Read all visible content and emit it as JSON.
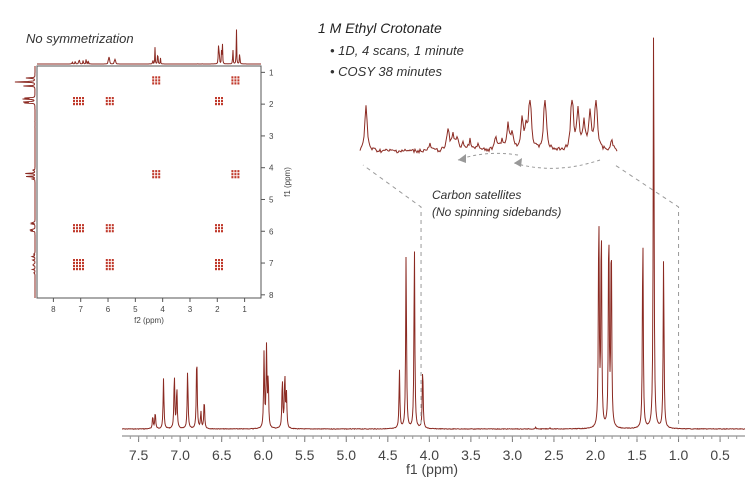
{
  "heading": {
    "title": "1 M Ethyl Crotonate",
    "bullets": [
      "• 1D, 4 scans, 1 minute",
      "• COSY 38 minutes"
    ]
  },
  "cosy": {
    "title": "No symmetrization",
    "x_ticks": [
      "8",
      "7",
      "6",
      "5",
      "4",
      "3",
      "2",
      "1"
    ],
    "y_ticks": [
      "1",
      "2",
      "3",
      "4",
      "5",
      "6",
      "7",
      "8"
    ],
    "xlabel": "f2 (ppm)",
    "ylabel": "f1 (ppm)"
  },
  "annotation": {
    "line1": "Carbon satellites",
    "line2": "(No spinning sidebands)"
  },
  "colors": {
    "spectrum": "#8b2a22",
    "cross_peak": "#c0392b",
    "guide": "#9a9a9a"
  },
  "chart_data": [
    {
      "type": "line",
      "title": "",
      "xlabel": "f1 (ppm)",
      "ylabel": "",
      "xlim": [
        7.7,
        0.2
      ],
      "x_ticks": [
        7.5,
        7.0,
        6.5,
        6.0,
        5.5,
        5.0,
        4.5,
        4.0,
        3.5,
        3.0,
        2.5,
        2.0,
        1.5,
        1.0,
        0.5
      ],
      "peaks": [
        {
          "ppm": 7.33,
          "height": 0.03
        },
        {
          "ppm": 7.3,
          "height": 0.04
        },
        {
          "ppm": 7.2,
          "height": 0.12
        },
        {
          "ppm": 7.07,
          "height": 0.13
        },
        {
          "ppm": 7.04,
          "height": 0.1
        },
        {
          "ppm": 6.91,
          "height": 0.14
        },
        {
          "ppm": 6.8,
          "height": 0.18
        },
        {
          "ppm": 6.75,
          "height": 0.04
        },
        {
          "ppm": 6.71,
          "height": 0.07
        },
        {
          "ppm": 5.99,
          "height": 0.18
        },
        {
          "ppm": 5.96,
          "height": 0.19
        },
        {
          "ppm": 5.94,
          "height": 0.12
        },
        {
          "ppm": 5.77,
          "height": 0.12
        },
        {
          "ppm": 5.74,
          "height": 0.13
        },
        {
          "ppm": 5.72,
          "height": 0.08
        },
        {
          "ppm": 4.36,
          "height": 0.14
        },
        {
          "ppm": 4.28,
          "height": 0.42
        },
        {
          "ppm": 4.18,
          "height": 0.44
        },
        {
          "ppm": 4.08,
          "height": 0.15
        },
        {
          "ppm": 2.72,
          "height": 0.004
        },
        {
          "ppm": 2.55,
          "height": 0.003
        },
        {
          "ppm": 1.96,
          "height": 0.53
        },
        {
          "ppm": 1.93,
          "height": 0.5
        },
        {
          "ppm": 1.84,
          "height": 0.5
        },
        {
          "ppm": 1.81,
          "height": 0.47
        },
        {
          "ppm": 1.43,
          "height": 0.48
        },
        {
          "ppm": 1.3,
          "height": 0.99
        },
        {
          "ppm": 1.18,
          "height": 0.41
        }
      ],
      "grid": false
    },
    {
      "type": "scatter",
      "title": "No symmetrization",
      "xlabel": "f2 (ppm)",
      "ylabel": "f1 (ppm)",
      "xlim": [
        8.6,
        0.4
      ],
      "ylim": [
        0.8,
        8.1
      ],
      "cross_peaks": [
        {
          "f2": 4.2,
          "f1": 1.25
        },
        {
          "f2": 1.3,
          "f1": 1.25
        },
        {
          "f2": 7.1,
          "f1": 1.9
        },
        {
          "f2": 5.9,
          "f1": 1.9
        },
        {
          "f2": 1.9,
          "f1": 1.9
        },
        {
          "f2": 4.2,
          "f1": 4.2
        },
        {
          "f2": 1.3,
          "f1": 4.2
        },
        {
          "f2": 7.1,
          "f1": 5.9
        },
        {
          "f2": 5.9,
          "f1": 5.9
        },
        {
          "f2": 1.9,
          "f1": 5.9
        },
        {
          "f2": 7.1,
          "f1": 7.0
        },
        {
          "f2": 5.9,
          "f1": 7.0
        },
        {
          "f2": 1.9,
          "f1": 7.0
        }
      ],
      "grid": false
    }
  ]
}
